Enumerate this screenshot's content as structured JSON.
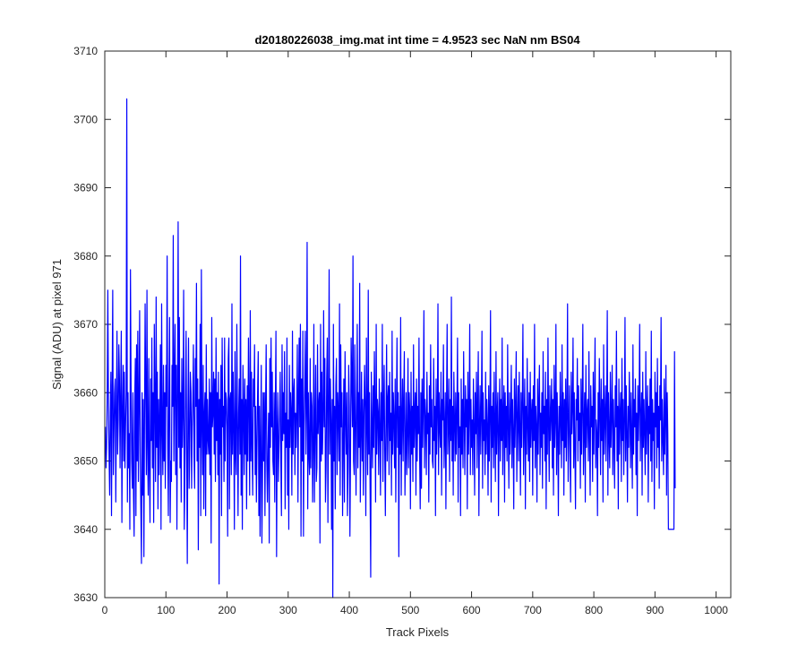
{
  "chart_data": {
    "type": "line",
    "title": "d20180226038_img.mat int time = 4.9523 sec  NaN nm BS04",
    "xlabel": "Track Pixels",
    "ylabel": "Signal (ADU) at pixel 971",
    "xlim": [
      0,
      1024
    ],
    "ylim": [
      3630,
      3710
    ],
    "xticks": [
      0,
      100,
      200,
      300,
      400,
      500,
      600,
      700,
      800,
      900,
      1000
    ],
    "yticks": [
      3630,
      3640,
      3650,
      3660,
      3670,
      3680,
      3690,
      3700,
      3710
    ],
    "grid": false,
    "legend": "none",
    "series_color": "#0000ff",
    "series": [
      {
        "x_start": 1,
        "x_step": 1,
        "values_note_free": true,
        "values": [
          3655,
          3649,
          3652,
          3660,
          3675,
          3658,
          3651,
          3645,
          3657,
          3663,
          3642,
          3660,
          3675,
          3648,
          3654,
          3660,
          3662,
          3644,
          3657,
          3669,
          3651,
          3656,
          3667,
          3662,
          3649,
          3660,
          3669,
          3641,
          3657,
          3664,
          3650,
          3663,
          3649,
          3655,
          3660,
          3703,
          3644,
          3660,
          3649,
          3654,
          3640,
          3678,
          3661,
          3650,
          3646,
          3660,
          3645,
          3639,
          3659,
          3665,
          3642,
          3667,
          3650,
          3669,
          3647,
          3659,
          3672,
          3651,
          3643,
          3635,
          3660,
          3645,
          3659,
          3636,
          3656,
          3673,
          3660,
          3648,
          3675,
          3652,
          3645,
          3665,
          3649,
          3641,
          3662,
          3653,
          3668,
          3649,
          3660,
          3641,
          3670,
          3659,
          3647,
          3674,
          3652,
          3663,
          3643,
          3659,
          3648,
          3657,
          3667,
          3640,
          3673,
          3655,
          3648,
          3664,
          3650,
          3660,
          3646,
          3664,
          3658,
          3680,
          3652,
          3642,
          3660,
          3671,
          3641,
          3650,
          3647,
          3664,
          3658,
          3683,
          3650,
          3662,
          3670,
          3648,
          3664,
          3640,
          3659,
          3685,
          3652,
          3671,
          3649,
          3660,
          3644,
          3665,
          3652,
          3658,
          3675,
          3640,
          3647,
          3660,
          3669,
          3651,
          3635,
          3657,
          3668,
          3646,
          3652,
          3663,
          3660,
          3646,
          3655,
          3659,
          3667,
          3651,
          3646,
          3665,
          3658,
          3676,
          3650,
          3662,
          3637,
          3659,
          3652,
          3670,
          3642,
          3678,
          3655,
          3648,
          3664,
          3643,
          3657,
          3660,
          3642,
          3667,
          3651,
          3659,
          3653,
          3651,
          3662,
          3648,
          3660,
          3638,
          3671,
          3655,
          3657,
          3663,
          3651,
          3662,
          3647,
          3668,
          3653,
          3660,
          3648,
          3663,
          3632,
          3659,
          3651,
          3664,
          3642,
          3668,
          3655,
          3658,
          3647,
          3668,
          3650,
          3660,
          3659,
          3655,
          3639,
          3665,
          3668,
          3643,
          3659,
          3660,
          3648,
          3673,
          3651,
          3663,
          3655,
          3640,
          3666,
          3651,
          3648,
          3670,
          3656,
          3642,
          3657,
          3662,
          3651,
          3680,
          3645,
          3659,
          3640,
          3664,
          3658,
          3648,
          3662,
          3651,
          3659,
          3643,
          3661,
          3650,
          3668,
          3658,
          3645,
          3672,
          3650,
          3663,
          3652,
          3645,
          3662,
          3658,
          3667,
          3648,
          3658,
          3644,
          3652,
          3660,
          3666,
          3642,
          3658,
          3639,
          3653,
          3664,
          3638,
          3648,
          3660,
          3650,
          3660,
          3642,
          3658,
          3667,
          3650,
          3644,
          3652,
          3657,
          3638,
          3665,
          3652,
          3668,
          3655,
          3663,
          3650,
          3648,
          3660,
          3644,
          3658,
          3669,
          3636,
          3654,
          3660,
          3647,
          3652,
          3657,
          3663,
          3650,
          3642,
          3667,
          3653,
          3660,
          3654,
          3666,
          3643,
          3657,
          3652,
          3668,
          3645,
          3656,
          3640,
          3664,
          3652,
          3660,
          3657,
          3645,
          3669,
          3651,
          3660,
          3662,
          3648,
          3657,
          3652,
          3658,
          3667,
          3644,
          3659,
          3668,
          3655,
          3670,
          3639,
          3662,
          3650,
          3669,
          3639,
          3655,
          3661,
          3669,
          3651,
          3658,
          3682,
          3643,
          3660,
          3651,
          3648,
          3665,
          3649,
          3660,
          3658,
          3644,
          3652,
          3670,
          3644,
          3655,
          3664,
          3647,
          3649,
          3667,
          3654,
          3658,
          3660,
          3638,
          3670,
          3650,
          3663,
          3651,
          3656,
          3672,
          3655,
          3665,
          3644,
          3649,
          3662,
          3668,
          3641,
          3658,
          3678,
          3651,
          3662,
          3656,
          3640,
          3659,
          3630,
          3670,
          3650,
          3658,
          3643,
          3661,
          3665,
          3648,
          3660,
          3657,
          3650,
          3673,
          3645,
          3667,
          3655,
          3660,
          3642,
          3653,
          3662,
          3644,
          3666,
          3657,
          3651,
          3660,
          3642,
          3649,
          3664,
          3658,
          3639,
          3651,
          3668,
          3662,
          3655,
          3680,
          3650,
          3648,
          3667,
          3656,
          3645,
          3658,
          3670,
          3649,
          3660,
          3652,
          3676,
          3644,
          3654,
          3663,
          3650,
          3659,
          3645,
          3657,
          3664,
          3658,
          3642,
          3668,
          3656,
          3648,
          3675,
          3651,
          3660,
          3646,
          3633,
          3663,
          3655,
          3649,
          3661,
          3652,
          3666,
          3658,
          3644,
          3670,
          3651,
          3659,
          3657,
          3648,
          3662,
          3655,
          3645,
          3660,
          3653,
          3670,
          3647,
          3658,
          3664,
          3651,
          3642,
          3656,
          3667,
          3650,
          3659,
          3661,
          3648,
          3663,
          3653,
          3657,
          3645,
          3669,
          3651,
          3660,
          3656,
          3649,
          3662,
          3644,
          3657,
          3668,
          3652,
          3660,
          3636,
          3658,
          3651,
          3671,
          3645,
          3656,
          3662,
          3650,
          3659,
          3666,
          3645,
          3652,
          3660,
          3648,
          3654,
          3665,
          3649,
          3660,
          3657,
          3643,
          3663,
          3651,
          3658,
          3647,
          3667,
          3652,
          3657,
          3660,
          3645,
          3662,
          3650,
          3658,
          3654,
          3668,
          3651,
          3643,
          3660,
          3646,
          3662,
          3652,
          3658,
          3672,
          3649,
          3659,
          3656,
          3648,
          3663,
          3654,
          3657,
          3644,
          3661,
          3651,
          3667,
          3655,
          3659,
          3650,
          3649,
          3665,
          3653,
          3658,
          3642,
          3662,
          3651,
          3657,
          3673,
          3648,
          3660,
          3655,
          3652,
          3663,
          3645,
          3659,
          3656,
          3667,
          3649,
          3654,
          3660,
          3643,
          3658,
          3670,
          3651,
          3655,
          3662,
          3647,
          3659,
          3653,
          3674,
          3650,
          3658,
          3645,
          3663,
          3656,
          3650,
          3660,
          3651,
          3657,
          3668,
          3644,
          3660,
          3652,
          3655,
          3642,
          3662,
          3651,
          3659,
          3649,
          3666,
          3656,
          3648,
          3661,
          3655,
          3659,
          3643,
          3663,
          3651,
          3657,
          3670,
          3648,
          3659,
          3652,
          3656,
          3648,
          3662,
          3655,
          3645,
          3660,
          3654,
          3663,
          3649,
          3658,
          3666,
          3642,
          3655,
          3661,
          3651,
          3657,
          3669,
          3646,
          3660,
          3653,
          3656,
          3648,
          3663,
          3651,
          3659,
          3655,
          3645,
          3661,
          3650,
          3657,
          3672,
          3644,
          3658,
          3652,
          3660,
          3649,
          3663,
          3655,
          3647,
          3666,
          3651,
          3657,
          3660,
          3642,
          3655,
          3662,
          3650,
          3659,
          3653,
          3668,
          3648,
          3657,
          3661,
          3644,
          3660,
          3652,
          3658,
          3650,
          3667,
          3655,
          3646,
          3660,
          3651,
          3657,
          3664,
          3649,
          3659,
          3654,
          3643,
          3662,
          3652,
          3658,
          3666,
          3647,
          3656,
          3661,
          3650,
          3663,
          3655,
          3645,
          3660,
          3652,
          3659,
          3670,
          3648,
          3656,
          3662,
          3643,
          3658,
          3651,
          3665,
          3655,
          3650,
          3660,
          3647,
          3663,
          3652,
          3657,
          3659,
          3645,
          3661,
          3653,
          3670,
          3649,
          3658,
          3655,
          3644,
          3662,
          3651,
          3659,
          3664,
          3648,
          3657,
          3652,
          3660,
          3646,
          3666,
          3654,
          3658,
          3650,
          3663,
          3643,
          3659,
          3651,
          3668,
          3655,
          3647,
          3661,
          3653,
          3657,
          3662,
          3649,
          3659,
          3645,
          3664,
          3652,
          3656,
          3670,
          3648,
          3660,
          3654,
          3642,
          3658,
          3651,
          3663,
          3656,
          3649,
          3667,
          3653,
          3660,
          3645,
          3659,
          3652,
          3662,
          3650,
          3657,
          3673,
          3647,
          3655,
          3661,
          3651,
          3644,
          3663,
          3654,
          3658,
          3668,
          3649,
          3660,
          3652,
          3643,
          3659,
          3656,
          3665,
          3650,
          3661,
          3653,
          3657,
          3646,
          3662,
          3651,
          3658,
          3670,
          3648,
          3655,
          3660,
          3644,
          3664,
          3652,
          3657,
          3659,
          3650,
          3666,
          3653,
          3645,
          3661,
          3655,
          3658,
          3647,
          3663,
          3651,
          3659,
          3668,
          3649,
          3656,
          3654,
          3642,
          3660,
          3652,
          3665,
          3657,
          3648,
          3662,
          3653,
          3659,
          3644,
          3667,
          3651,
          3656,
          3661,
          3650,
          3658,
          3672,
          3645,
          3660,
          3654,
          3649,
          3663,
          3652,
          3657,
          3664,
          3648,
          3659,
          3653,
          3646,
          3661,
          3655,
          3669,
          3650,
          3658,
          3643,
          3662,
          3651,
          3657,
          3660,
          3647,
          3665,
          3653,
          3659,
          3648,
          3656,
          3671,
          3650,
          3661,
          3654,
          3644,
          3658,
          3652,
          3663,
          3657,
          3649,
          3660,
          3653,
          3646,
          3667,
          3651,
          3659,
          3655,
          3662,
          3648,
          3657,
          3642,
          3661,
          3653,
          3658,
          3670,
          3650,
          3656,
          3660,
          3645,
          3663,
          3652,
          3659,
          3654,
          3648,
          3666,
          3651,
          3657,
          3661,
          3644,
          3658,
          3654,
          3662,
          3650,
          3669,
          3647,
          3659,
          3653,
          3657,
          3643,
          3663,
          3655,
          3660,
          3649,
          3665,
          3652,
          3658,
          3646,
          3661,
          3656,
          3671,
          3650,
          3659,
          3653,
          3648,
          3662,
          3651,
          3657,
          3664,
          3645,
          3660,
          3654,
          3640,
          3640,
          3640,
          3640,
          3640,
          3640,
          3640,
          3640,
          3640,
          3640,
          3666,
          3646
        ]
      }
    ]
  }
}
